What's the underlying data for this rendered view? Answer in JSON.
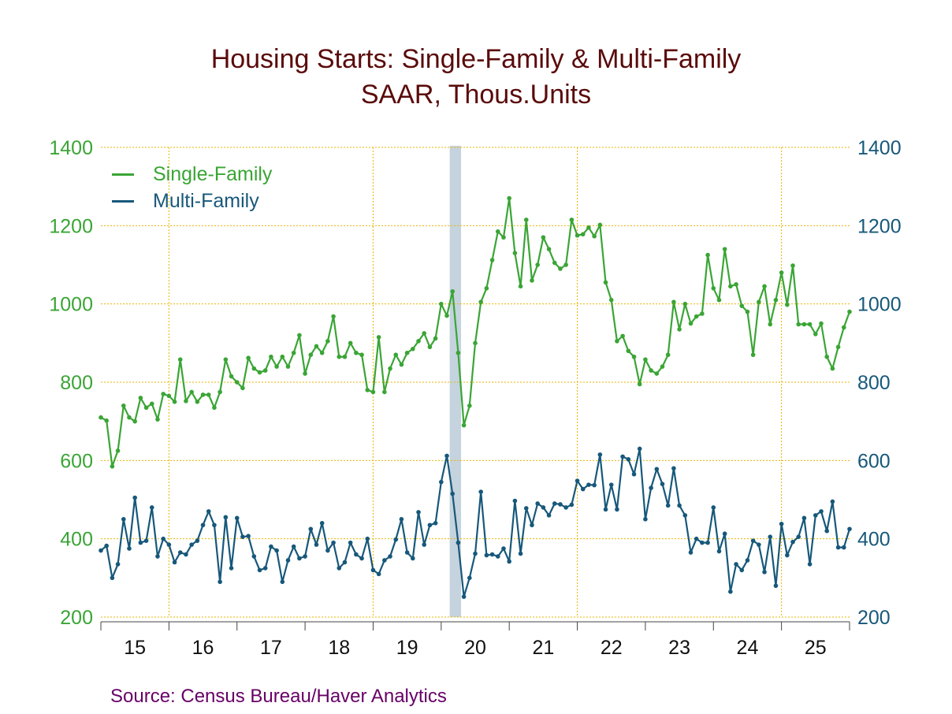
{
  "title": "Housing Starts: Single-Family & Multi-Family",
  "subtitle": "SAAR, Thous.Units",
  "source": "Source: Census Bureau/Haver Analytics",
  "colors": {
    "single_family": "#3aa535",
    "multi_family": "#17587a",
    "left_axis": "#3aa535",
    "right_axis": "#17587a",
    "grid": "#e8b500",
    "recession": "#c5d3de",
    "title": "#5a0a0a",
    "source": "#660066"
  },
  "chart_data": {
    "type": "line",
    "x_unit": "month",
    "x_start": "2015-01",
    "x_ticks": [
      "15",
      "16",
      "17",
      "18",
      "19",
      "20",
      "21",
      "22",
      "23",
      "24",
      "25"
    ],
    "ylim": [
      200,
      1400
    ],
    "yticks_left": [
      "200",
      "400",
      "600",
      "800",
      "1000",
      "1200",
      "1400"
    ],
    "yticks_right": [
      "200",
      "400",
      "600",
      "800",
      "1000",
      "1200",
      "1400"
    ],
    "grid": true,
    "legend_position": "top-left",
    "shaded_period": {
      "start": "2020-02",
      "end": "2020-04"
    },
    "series": [
      {
        "name": "Single-Family",
        "axis": "left",
        "values": [
          710,
          702,
          585,
          625,
          740,
          710,
          700,
          760,
          735,
          745,
          705,
          770,
          765,
          750,
          858,
          752,
          775,
          750,
          768,
          768,
          735,
          775,
          858,
          815,
          800,
          785,
          862,
          835,
          825,
          830,
          865,
          840,
          865,
          840,
          875,
          920,
          822,
          870,
          892,
          875,
          905,
          968,
          865,
          865,
          900,
          875,
          870,
          780,
          775,
          915,
          775,
          835,
          870,
          845,
          875,
          885,
          905,
          925,
          890,
          912,
          1000,
          970,
          1032,
          875,
          690,
          740,
          900,
          1005,
          1040,
          1112,
          1185,
          1170,
          1270,
          1130,
          1045,
          1215,
          1060,
          1100,
          1170,
          1140,
          1105,
          1090,
          1100,
          1215,
          1175,
          1178,
          1195,
          1173,
          1202,
          1055,
          1010,
          905,
          918,
          880,
          865,
          795,
          858,
          830,
          822,
          840,
          870,
          1005,
          935,
          1000,
          950,
          968,
          975,
          1125,
          1040,
          1010,
          1140,
          1045,
          1050,
          995,
          980,
          870,
          1005,
          1045,
          948,
          1010,
          1080,
          998,
          1098,
          948,
          948,
          948,
          923,
          950,
          865,
          835,
          890,
          940,
          980
        ]
      },
      {
        "name": "Multi-Family",
        "axis": "right",
        "values": [
          370,
          382,
          300,
          335,
          450,
          375,
          505,
          390,
          395,
          480,
          355,
          400,
          385,
          340,
          365,
          360,
          385,
          395,
          435,
          470,
          435,
          290,
          455,
          325,
          453,
          405,
          407,
          355,
          320,
          325,
          380,
          370,
          290,
          345,
          380,
          350,
          355,
          425,
          385,
          440,
          370,
          390,
          325,
          340,
          390,
          360,
          350,
          400,
          320,
          310,
          345,
          355,
          398,
          450,
          365,
          350,
          468,
          385,
          435,
          440,
          545,
          612,
          515,
          390,
          252,
          300,
          362,
          520,
          358,
          360,
          355,
          375,
          342,
          497,
          362,
          478,
          435,
          490,
          480,
          460,
          490,
          488,
          480,
          487,
          548,
          527,
          538,
          537,
          615,
          475,
          538,
          475,
          610,
          603,
          565,
          630,
          450,
          530,
          578,
          540,
          485,
          580,
          485,
          460,
          365,
          400,
          390,
          390,
          480,
          368,
          413,
          265,
          335,
          320,
          345,
          395,
          385,
          315,
          405,
          280,
          438,
          358,
          392,
          405,
          453,
          335,
          460,
          470,
          420,
          495,
          378,
          378,
          425
        ]
      }
    ]
  }
}
